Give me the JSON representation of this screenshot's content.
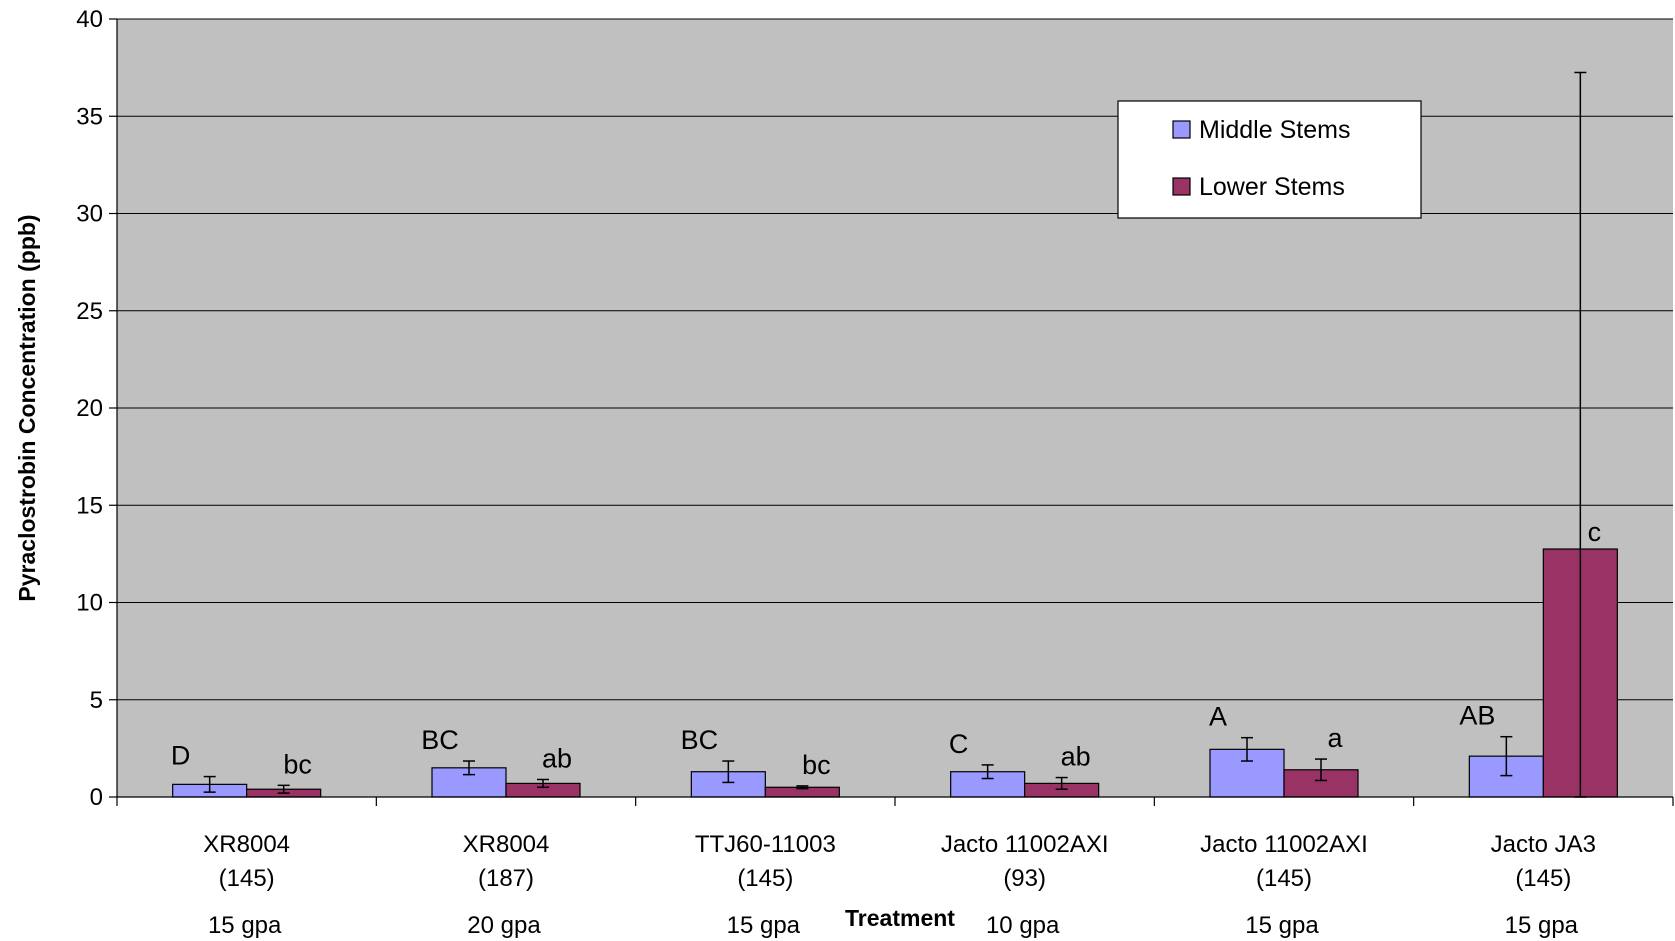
{
  "chart_data": {
    "type": "bar",
    "title": "",
    "xlabel": "Treatment",
    "ylabel": "Pyraclostrobin Concentration (ppb)",
    "ylim": [
      0,
      40
    ],
    "yticks": [
      0,
      5,
      10,
      15,
      20,
      25,
      30,
      35,
      40
    ],
    "grid": true,
    "legend_position": "top-right",
    "background": "#C0C0C0",
    "categories": [
      {
        "name": "XR8004",
        "pressure": "(145)",
        "rate": "15 gpa"
      },
      {
        "name": "XR8004",
        "pressure": "(187)",
        "rate": "20 gpa"
      },
      {
        "name": "TTJ60-11003",
        "pressure": "(145)",
        "rate": "15 gpa"
      },
      {
        "name": "Jacto 11002AXI",
        "pressure": "(93)",
        "rate": "10 gpa"
      },
      {
        "name": "Jacto 11002AXI",
        "pressure": "(145)",
        "rate": "15 gpa"
      },
      {
        "name": "Jacto JA3",
        "pressure": "(145)",
        "rate": "15 gpa"
      }
    ],
    "series": [
      {
        "name": "Middle Stems",
        "color": "#9999FF",
        "values": [
          0.65,
          1.5,
          1.3,
          1.3,
          2.45,
          2.1
        ],
        "error": [
          0.4,
          0.35,
          0.55,
          0.35,
          0.6,
          1.0
        ],
        "labels": [
          "D",
          "BC",
          "BC",
          "C",
          "A",
          "AB"
        ]
      },
      {
        "name": "Lower Stems",
        "color": "#993366",
        "values": [
          0.4,
          0.7,
          0.5,
          0.7,
          1.4,
          12.75
        ],
        "error": [
          0.2,
          0.2,
          0.07,
          0.3,
          0.55,
          24.5
        ],
        "labels": [
          "bc",
          "ab",
          "bc",
          "ab",
          "a",
          "c"
        ]
      }
    ]
  }
}
